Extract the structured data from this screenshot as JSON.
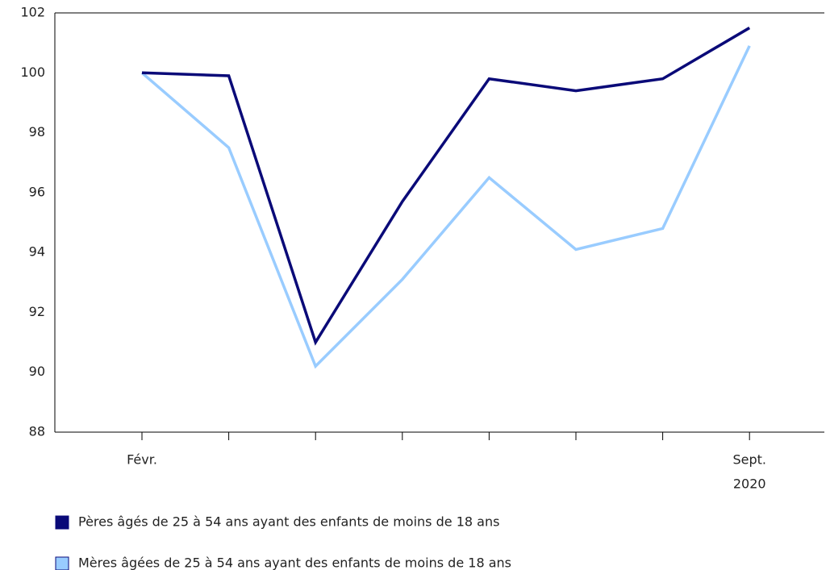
{
  "chart_data": {
    "type": "line",
    "categories": [
      "Févr.",
      null,
      null,
      null,
      null,
      null,
      null,
      "Sept."
    ],
    "annotations": [
      "2020"
    ],
    "series": [
      {
        "name": "Pères âgés de 25 à 54 ans ayant des enfants de moins de 18 ans",
        "color": "#0a0a78",
        "values": [
          100,
          99.9,
          91.0,
          95.7,
          99.8,
          99.4,
          99.8,
          101.5
        ]
      },
      {
        "name": "Mères âgées de 25 à 54 ans ayant des enfants de moins de 18 ans",
        "color": "#99ccff",
        "values": [
          100,
          97.5,
          90.2,
          93.1,
          96.5,
          94.1,
          94.8,
          100.9
        ]
      }
    ],
    "ylim": [
      88,
      102
    ],
    "yticks": [
      88,
      90,
      92,
      94,
      96,
      98,
      100,
      102
    ],
    "grid": false
  }
}
